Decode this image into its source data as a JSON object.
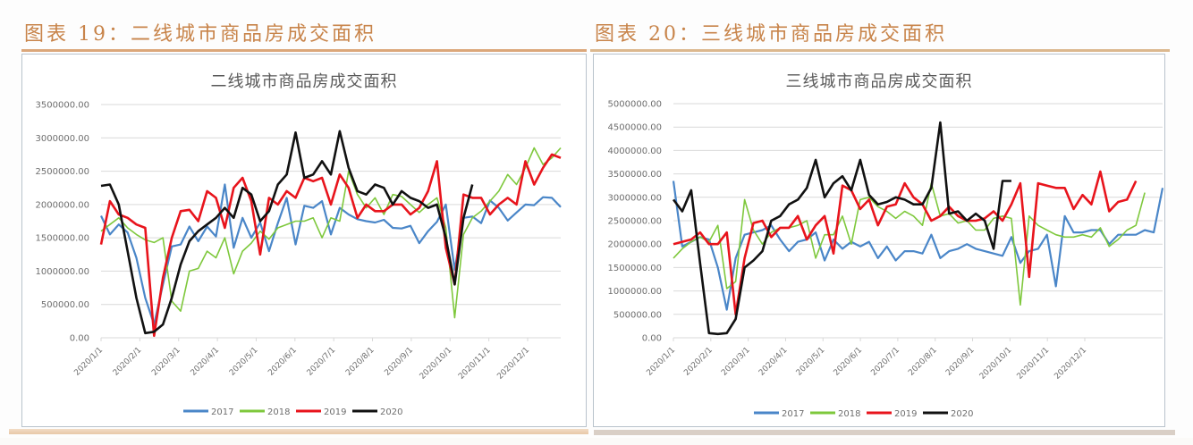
{
  "figures": [
    {
      "label": "图表 19：二线城市商品房成交面积",
      "chart_title": "二线城市商品房成交面积"
    },
    {
      "label": "图表 20：三线城市商品房成交面积",
      "chart_title": "三线城市商品房成交面积"
    }
  ],
  "colors": {
    "title": "#c8844a",
    "rule": "#dba77a",
    "grid": "#d9d9d9",
    "s2017": "#4a86c8",
    "s2018": "#7ec83c",
    "s2019": "#e8141c",
    "s2020": "#111111"
  },
  "chart_data": [
    {
      "type": "line",
      "title": "二线城市商品房成交面积",
      "xlabel": "",
      "ylabel": "",
      "ylim": [
        0,
        3500000
      ],
      "yticks": [
        "0.00",
        "500000.00",
        "1000000.00",
        "1500000.00",
        "2000000.00",
        "2500000.00",
        "3000000.00",
        "3500000.00"
      ],
      "xticks": [
        "2020/1/1",
        "2020/2/1",
        "2020/3/1",
        "2020/4/1",
        "2020/5/1",
        "2020/6/1",
        "2020/7/1",
        "2020/8/1",
        "2020/9/1",
        "2020/10/1",
        "2020/11/1",
        "2020/12/1"
      ],
      "grid": true,
      "legend_position": "bottom",
      "series": [
        {
          "name": "2017",
          "values": [
            1830000,
            1550000,
            1700000,
            1580000,
            1200000,
            600000,
            200000,
            800000,
            1370000,
            1400000,
            1670000,
            1450000,
            1670000,
            1520000,
            2300000,
            1350000,
            1800000,
            1500000,
            1730000,
            1300000,
            1720000,
            2100000,
            1400000,
            1980000,
            1950000,
            2050000,
            1550000,
            1950000,
            1850000,
            1780000,
            1750000,
            1730000,
            1770000,
            1650000,
            1640000,
            1680000,
            1420000,
            1600000,
            1740000,
            2000000,
            1020000,
            1800000,
            1820000,
            1720000,
            2060000,
            1950000,
            1760000,
            1880000,
            2000000,
            1990000,
            2110000,
            2100000,
            1960000
          ]
        },
        {
          "name": "2018",
          "values": [
            1600000,
            1700000,
            1800000,
            1650000,
            1550000,
            1470000,
            1430000,
            1500000,
            550000,
            400000,
            1000000,
            1040000,
            1300000,
            1200000,
            1500000,
            960000,
            1300000,
            1420000,
            1600000,
            1480000,
            1650000,
            1700000,
            1750000,
            1750000,
            1800000,
            1500000,
            1800000,
            1750000,
            2500000,
            2150000,
            1950000,
            2100000,
            1850000,
            2150000,
            2120000,
            2000000,
            1880000,
            2000000,
            2100000,
            1650000,
            300000,
            1550000,
            1800000,
            1900000,
            2050000,
            2200000,
            2450000,
            2300000,
            2550000,
            2850000,
            2600000,
            2700000,
            2850000
          ]
        },
        {
          "name": "2019",
          "values": [
            1400000,
            2050000,
            1850000,
            1800000,
            1700000,
            1650000,
            30000,
            900000,
            1500000,
            1900000,
            1920000,
            1750000,
            2200000,
            2100000,
            1650000,
            2250000,
            2400000,
            2050000,
            1250000,
            2100000,
            2000000,
            2200000,
            2100000,
            2400000,
            2350000,
            2400000,
            2000000,
            2450000,
            2250000,
            1800000,
            2000000,
            1900000,
            1900000,
            2000000,
            2000000,
            1850000,
            1950000,
            2200000,
            2650000,
            1350000,
            800000,
            2150000,
            2100000,
            2100000,
            1850000,
            2000000,
            2100000,
            2000000,
            2650000,
            2300000,
            2550000,
            2750000,
            2700000
          ]
        },
        {
          "name": "2020",
          "values": [
            2280000,
            2300000,
            2000000,
            1300000,
            600000,
            70000,
            90000,
            200000,
            600000,
            1100000,
            1450000,
            1600000,
            1700000,
            1800000,
            1950000,
            1800000,
            2250000,
            2150000,
            1750000,
            1900000,
            2300000,
            2450000,
            3080000,
            2400000,
            2450000,
            2650000,
            2450000,
            3100000,
            2550000,
            2200000,
            2150000,
            2300000,
            2250000,
            2000000,
            2200000,
            2100000,
            2050000,
            1950000,
            2000000,
            1500000,
            800000,
            1800000,
            2300000
          ]
        }
      ]
    },
    {
      "type": "line",
      "title": "三线城市商品房成交面积",
      "xlabel": "",
      "ylabel": "",
      "ylim": [
        0,
        5000000
      ],
      "yticks": [
        "0.00",
        "500000.00",
        "1000000.00",
        "1500000.00",
        "2000000.00",
        "2500000.00",
        "3000000.00",
        "3500000.00",
        "4000000.00",
        "4500000.00",
        "5000000.00"
      ],
      "xticks": [
        "2020/1/1",
        "2020/2/1",
        "2020/3/1",
        "2020/4/1",
        "2020/5/1",
        "2020/6/1",
        "2020/7/1",
        "2020/8/1",
        "2020/9/1",
        "2020/10/1",
        "2020/11/1",
        "2020/12/1"
      ],
      "grid": true,
      "legend_position": "bottom",
      "series": [
        {
          "name": "2017",
          "values": [
            3350000,
            1950000,
            2050000,
            2150000,
            2100000,
            1500000,
            600000,
            1700000,
            2200000,
            2250000,
            2300000,
            2400000,
            2100000,
            1850000,
            2050000,
            2100000,
            2250000,
            1650000,
            2100000,
            1900000,
            2050000,
            1950000,
            2050000,
            1700000,
            1950000,
            1650000,
            1850000,
            1850000,
            1800000,
            2200000,
            1700000,
            1850000,
            1900000,
            2000000,
            1900000,
            1850000,
            1800000,
            1750000,
            2150000,
            1600000,
            1850000,
            1900000,
            2200000,
            1100000,
            2600000,
            2250000,
            2250000,
            2300000,
            2300000,
            2000000,
            2200000,
            2200000,
            2200000,
            2300000,
            2250000,
            3200000
          ]
        },
        {
          "name": "2018",
          "values": [
            1700000,
            1900000,
            2050000,
            2150000,
            2050000,
            2400000,
            1050000,
            1200000,
            2950000,
            2300000,
            2000000,
            2250000,
            2350000,
            2350000,
            2400000,
            2500000,
            1700000,
            2200000,
            2200000,
            2600000,
            2000000,
            2950000,
            3000000,
            2800000,
            2700000,
            2550000,
            2700000,
            2600000,
            2400000,
            3300000,
            2600000,
            2650000,
            2450000,
            2500000,
            2300000,
            2300000,
            2550000,
            2600000,
            2550000,
            700000,
            2600000,
            2400000,
            2300000,
            2200000,
            2150000,
            2150000,
            2200000,
            2150000,
            2350000,
            1950000,
            2100000,
            2300000,
            2400000,
            3100000
          ]
        },
        {
          "name": "2019",
          "values": [
            2000000,
            2050000,
            2100000,
            2250000,
            2000000,
            2000000,
            2250000,
            500000,
            1700000,
            2450000,
            2500000,
            2150000,
            2350000,
            2350000,
            2600000,
            2100000,
            2400000,
            2600000,
            1800000,
            3250000,
            3150000,
            2750000,
            2950000,
            2400000,
            2800000,
            2850000,
            3300000,
            3000000,
            2850000,
            2500000,
            2600000,
            2800000,
            2600000,
            2500000,
            2500000,
            2550000,
            2700000,
            2500000,
            2850000,
            3300000,
            1300000,
            3300000,
            3250000,
            3200000,
            3200000,
            2750000,
            3050000,
            2850000,
            3550000,
            2700000,
            2900000,
            2950000,
            3350000
          ]
        },
        {
          "name": "2020",
          "values": [
            2950000,
            2700000,
            3150000,
            1600000,
            100000,
            80000,
            100000,
            400000,
            1500000,
            1650000,
            1850000,
            2500000,
            2600000,
            2850000,
            2950000,
            3200000,
            3800000,
            3000000,
            3300000,
            3450000,
            3150000,
            3800000,
            3050000,
            2850000,
            2900000,
            3000000,
            2950000,
            2850000,
            2850000,
            3200000,
            4600000,
            2650000,
            2700000,
            2500000,
            2650000,
            2500000,
            1900000,
            3350000,
            3350000
          ]
        }
      ]
    }
  ]
}
